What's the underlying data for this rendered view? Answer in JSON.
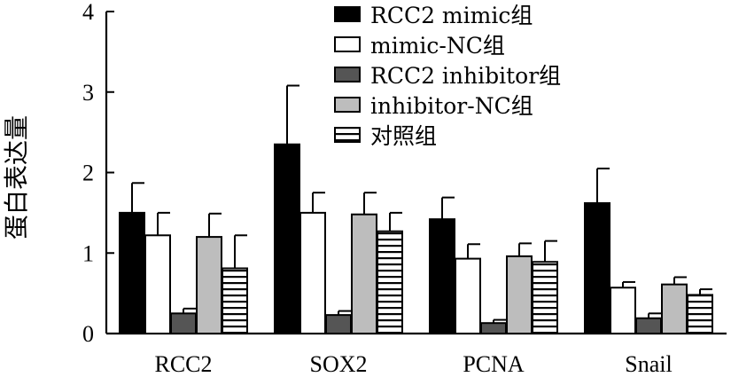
{
  "chart_data": {
    "type": "bar",
    "title": "",
    "xlabel": "",
    "ylabel": "蛋白表达量",
    "ylim": [
      0,
      4
    ],
    "yticks": [
      0,
      1,
      2,
      3,
      4
    ],
    "grid": false,
    "legend_position": "top-right",
    "categories": [
      "RCC2",
      "SOX2",
      "PCNA",
      "Snail"
    ],
    "series": [
      {
        "name": "RCC2 mimic组",
        "fill": "solid-black",
        "values": [
          1.5,
          2.35,
          1.42,
          1.62
        ],
        "errors": [
          0.37,
          0.73,
          0.27,
          0.43
        ]
      },
      {
        "name": "mimic-NC组",
        "fill": "white",
        "values": [
          1.22,
          1.5,
          0.93,
          0.57
        ],
        "errors": [
          0.28,
          0.25,
          0.18,
          0.07
        ]
      },
      {
        "name": "RCC2 inhibitor组",
        "fill": "dark-gray",
        "values": [
          0.25,
          0.23,
          0.13,
          0.19
        ],
        "errors": [
          0.06,
          0.05,
          0.04,
          0.06
        ]
      },
      {
        "name": "inhibitor-NC组",
        "fill": "light-gray",
        "values": [
          1.2,
          1.48,
          0.96,
          0.61
        ],
        "errors": [
          0.29,
          0.27,
          0.16,
          0.09
        ]
      },
      {
        "name": "对照组",
        "fill": "horizontal-stripes",
        "values": [
          0.81,
          1.27,
          0.89,
          0.48
        ],
        "errors": [
          0.41,
          0.23,
          0.26,
          0.07
        ]
      }
    ]
  },
  "colors": {
    "solid_black": "#000000",
    "white": "#ffffff",
    "dark_gray": "#555555",
    "light_gray": "#bdbdbd",
    "stroke": "#000000"
  }
}
